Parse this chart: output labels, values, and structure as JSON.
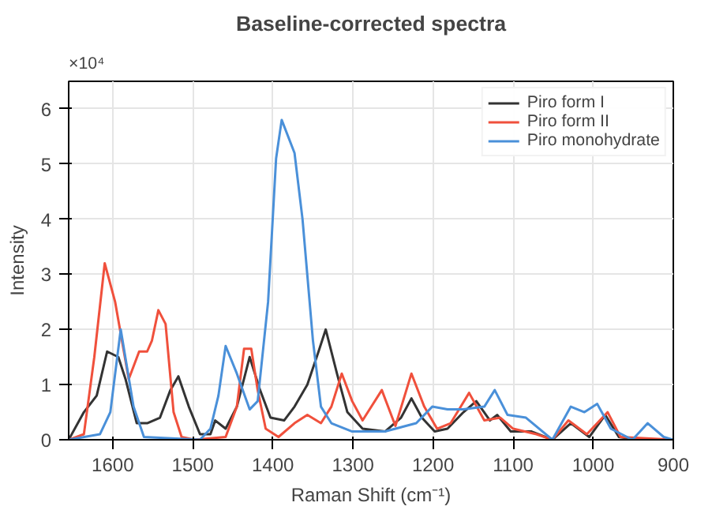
{
  "chart_data": {
    "type": "line",
    "title": "Baseline-corrected spectra",
    "xlabel": "Raman Shift (cm⁻¹)",
    "ylabel": "Intensity",
    "annotations": [
      "×10⁴"
    ],
    "xlim": [
      1655,
      900
    ],
    "ylim": [
      0,
      6.5
    ],
    "xticks": [
      1600,
      1500,
      1400,
      1300,
      1200,
      1100,
      1000,
      900
    ],
    "yticks": [
      0,
      1,
      2,
      3,
      4,
      5,
      6
    ],
    "grid": true,
    "legend": "top right",
    "line_style": "solid",
    "series": [
      {
        "name": "Piro form I",
        "color": "#333333",
        "x": [
          1655,
          1636,
          1620,
          1607,
          1593,
          1584,
          1570,
          1557,
          1541,
          1528,
          1518,
          1505,
          1491,
          1478,
          1472,
          1459,
          1445,
          1429,
          1416,
          1403,
          1386,
          1373,
          1357,
          1343,
          1334,
          1320,
          1307,
          1288,
          1260,
          1240,
          1227,
          1214,
          1198,
          1182,
          1162,
          1146,
          1129,
          1120,
          1103,
          1077,
          1051,
          1028,
          1005,
          985,
          968,
          945,
          900
        ],
        "values": [
          0,
          0.5,
          0.8,
          1.6,
          1.5,
          1.1,
          0.3,
          0.3,
          0.4,
          0.9,
          1.15,
          0.6,
          0.1,
          0.1,
          0.35,
          0.2,
          0.6,
          1.5,
          0.9,
          0.4,
          0.35,
          0.6,
          1.0,
          1.6,
          2.0,
          1.2,
          0.5,
          0.2,
          0.15,
          0.4,
          0.75,
          0.4,
          0.15,
          0.2,
          0.5,
          0.7,
          0.35,
          0.45,
          0.15,
          0.15,
          0,
          0.3,
          0.05,
          0.45,
          0.05,
          0,
          0
        ]
      },
      {
        "name": "Piro form II",
        "color": "#f0503c",
        "x": [
          1655,
          1636,
          1623,
          1610,
          1597,
          1580,
          1567,
          1557,
          1551,
          1543,
          1534,
          1524,
          1514,
          1498,
          1459,
          1445,
          1436,
          1427,
          1419,
          1409,
          1393,
          1373,
          1357,
          1340,
          1327,
          1314,
          1301,
          1288,
          1264,
          1247,
          1227,
          1211,
          1195,
          1178,
          1155,
          1136,
          1116,
          1100,
          1071,
          1051,
          1031,
          1008,
          982,
          966,
          900
        ],
        "values": [
          0,
          0.1,
          1.5,
          3.2,
          2.5,
          1.1,
          1.6,
          1.6,
          1.8,
          2.35,
          2.1,
          0.5,
          0.05,
          0,
          0.05,
          0.6,
          1.65,
          1.65,
          0.9,
          0.2,
          0.05,
          0.3,
          0.45,
          0.3,
          0.6,
          1.2,
          0.7,
          0.35,
          0.9,
          0.25,
          1.2,
          0.6,
          0.2,
          0.3,
          0.85,
          0.35,
          0.4,
          0.2,
          0.1,
          0,
          0.35,
          0.1,
          0.5,
          0.05,
          0
        ]
      },
      {
        "name": "Piro monohydrate",
        "color": "#4a90d9",
        "x": [
          1655,
          1616,
          1603,
          1590,
          1574,
          1561,
          1491,
          1478,
          1468,
          1459,
          1445,
          1429,
          1419,
          1406,
          1396,
          1389,
          1373,
          1363,
          1350,
          1340,
          1327,
          1301,
          1260,
          1221,
          1201,
          1182,
          1162,
          1136,
          1123,
          1107,
          1084,
          1051,
          1028,
          1011,
          995,
          978,
          951,
          932,
          912,
          900
        ],
        "values": [
          0,
          0.1,
          0.5,
          2.0,
          0.6,
          0.05,
          0,
          0.2,
          0.8,
          1.7,
          1.2,
          0.55,
          0.7,
          2.5,
          5.1,
          5.8,
          5.2,
          4.0,
          1.8,
          0.6,
          0.3,
          0.15,
          0.15,
          0.3,
          0.6,
          0.55,
          0.55,
          0.6,
          0.9,
          0.45,
          0.4,
          0,
          0.6,
          0.5,
          0.65,
          0.2,
          0,
          0.3,
          0.05,
          0
        ]
      }
    ]
  }
}
